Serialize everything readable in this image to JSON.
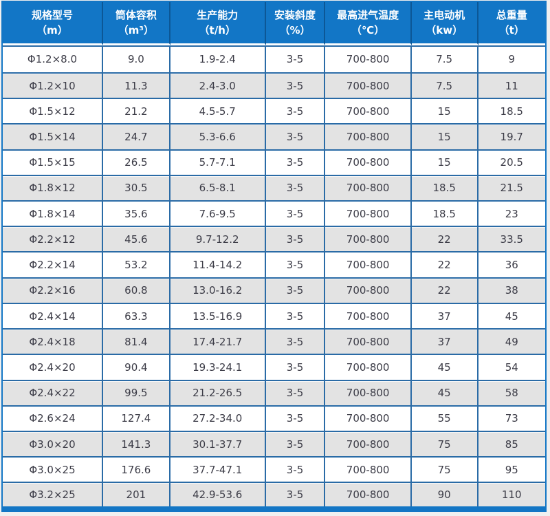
{
  "table": {
    "title_semantic": "rotary-equipment-specification-table",
    "columns": [
      {
        "line1": "规格型号",
        "line2": "（m）"
      },
      {
        "line1": "筒体容积",
        "line2": "（m³）"
      },
      {
        "line1": "生产能力",
        "line2": "（t/h）"
      },
      {
        "line1": "安装斜度",
        "line2": "（%）"
      },
      {
        "line1": "最高进气温度",
        "line2": "（℃）"
      },
      {
        "line1": "主电动机",
        "line2": "（kw）"
      },
      {
        "line1": "总重量",
        "line2": "（t）"
      }
    ],
    "rows": [
      [
        "Φ1.2×8.0",
        "9.0",
        "1.9-2.4",
        "3-5",
        "700-800",
        "7.5",
        "9"
      ],
      [
        "Φ1.2×10",
        "11.3",
        "2.4-3.0",
        "3-5",
        "700-800",
        "7.5",
        "11"
      ],
      [
        "Φ1.5×12",
        "21.2",
        "4.5-5.7",
        "3-5",
        "700-800",
        "15",
        "18.5"
      ],
      [
        "Φ1.5×14",
        "24.7",
        "5.3-6.6",
        "3-5",
        "700-800",
        "15",
        "19.7"
      ],
      [
        "Φ1.5×15",
        "26.5",
        "5.7-7.1",
        "3-5",
        "700-800",
        "15",
        "20.5"
      ],
      [
        "Φ1.8×12",
        "30.5",
        "6.5-8.1",
        "3-5",
        "700-800",
        "18.5",
        "21.5"
      ],
      [
        "Φ1.8×14",
        "35.6",
        "7.6-9.5",
        "3-5",
        "700-800",
        "18.5",
        "23"
      ],
      [
        "Φ2.2×12",
        "45.6",
        "9.7-12.2",
        "3-5",
        "700-800",
        "22",
        "33.5"
      ],
      [
        "Φ2.2×14",
        "53.2",
        "11.4-14.2",
        "3-5",
        "700-800",
        "22",
        "36"
      ],
      [
        "Φ2.2×16",
        "60.8",
        "13.0-16.2",
        "3-5",
        "700-800",
        "22",
        "38"
      ],
      [
        "Φ2.4×14",
        "63.3",
        "13.5-16.9",
        "3-5",
        "700-800",
        "37",
        "45"
      ],
      [
        "Φ2.4×18",
        "81.4",
        "17.4-21.7",
        "3-5",
        "700-800",
        "37",
        "49"
      ],
      [
        "Φ2.4×20",
        "90.4",
        "19.3-24.1",
        "3-5",
        "700-800",
        "45",
        "54"
      ],
      [
        "Φ2.4×22",
        "99.5",
        "21.2-26.5",
        "3-5",
        "700-800",
        "45",
        "58"
      ],
      [
        "Φ2.6×24",
        "127.4",
        "27.2-34.0",
        "3-5",
        "700-800",
        "55",
        "73"
      ],
      [
        "Φ3.0×20",
        "141.3",
        "30.1-37.7",
        "3-5",
        "700-800",
        "75",
        "85"
      ],
      [
        "Φ3.0×25",
        "176.6",
        "37.7-47.1",
        "3-5",
        "700-800",
        "75",
        "95"
      ],
      [
        "Φ3.2×25",
        "201",
        "42.9-53.6",
        "3-5",
        "700-800",
        "90",
        "110"
      ]
    ]
  },
  "colors": {
    "header_bg": "#1276c6",
    "header_divider": "#0c5796",
    "cell_border": "#2a6ba6",
    "row_alt_bg": "#e3e3e3",
    "row_bg": "#ffffff",
    "text": "#3b3b46",
    "header_text": "#ffffff",
    "page_bg": "#f0f0f0"
  },
  "layout": {
    "column_widths_pct": [
      18.5,
      12.4,
      17.6,
      11.0,
      15.9,
      12.25,
      12.35
    ]
  }
}
